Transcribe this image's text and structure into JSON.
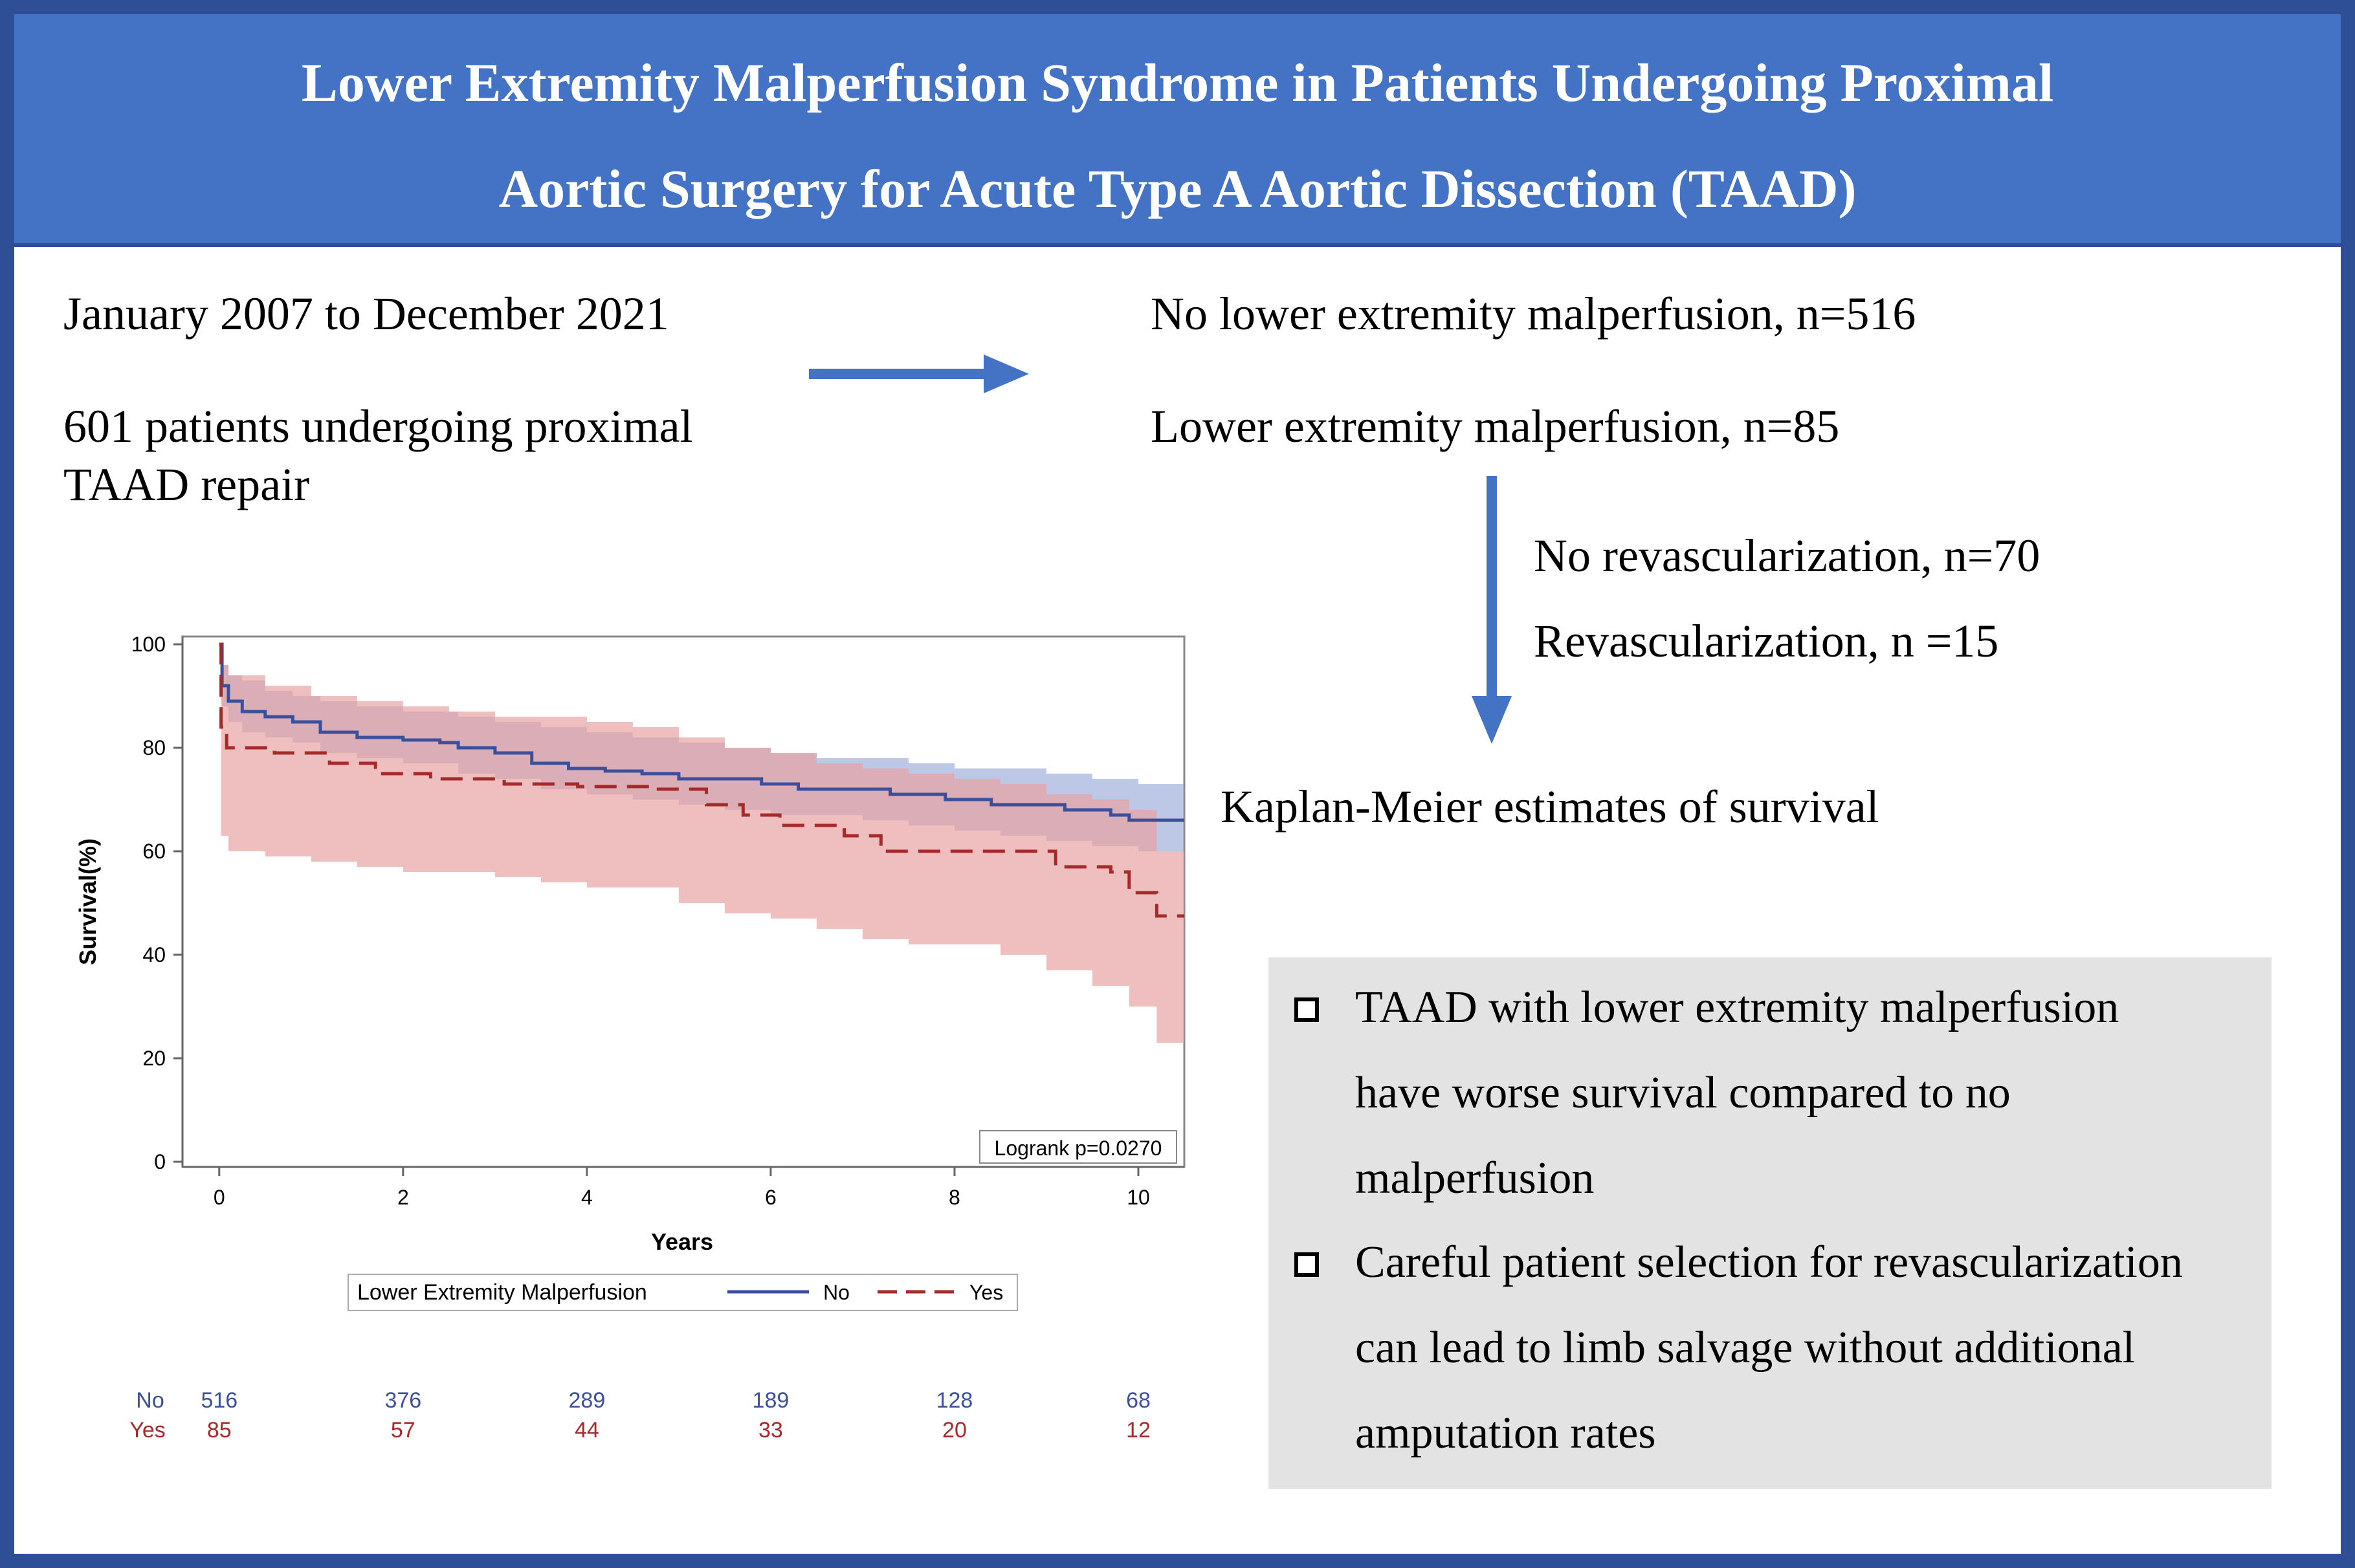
{
  "header": {
    "title_line1": "Lower Extremity Malperfusion Syndrome in Patients Undergoing Proximal",
    "title_line2": "Aortic Surgery for Acute Type A Aortic Dissection (TAAD)"
  },
  "flow": {
    "period": "January 2007 to December 2021",
    "cohort_line1": "601 patients undergoing proximal",
    "cohort_line2": "TAAD  repair",
    "no_malperfusion": "No lower extremity malperfusion, n=516",
    "malperfusion": "Lower extremity malperfusion, n=85",
    "no_revasc": "No revascularization, n=70",
    "revasc": "Revascularization, n =15",
    "km_label": "Kaplan-Meier estimates of survival"
  },
  "key_points": {
    "point1_line1": "TAAD with lower extremity malperfusion",
    "point1_line2": "have worse survival compared to no",
    "point1_line3": "malperfusion",
    "point2_line1": "Careful patient selection for revascularization",
    "point2_line2": "can lead to limb salvage without additional",
    "point2_line3": "amputation rates"
  },
  "colors": {
    "banner": "#4472c4",
    "border": "#2e4f96",
    "arrow": "#4472c4",
    "series_no": "#3b4f9a",
    "series_yes": "#a52a2a",
    "band_no": "#8fa3d6",
    "band_yes": "#e8a3a3"
  },
  "chart_data": {
    "type": "line",
    "xlabel": "Years",
    "ylabel": "Survival(%)",
    "xlim": [
      -0.4,
      10.5
    ],
    "ylim": [
      0,
      100
    ],
    "xticks": [
      0,
      2,
      4,
      6,
      8,
      10
    ],
    "yticks": [
      0,
      20,
      40,
      60,
      80,
      100
    ],
    "annotation": "Logrank p=0.0270",
    "legend": {
      "title": "Lower Extremity Malperfusion",
      "position": "bottom",
      "entries": [
        "No",
        "Yes"
      ]
    },
    "series": [
      {
        "name": "No",
        "style": "solid",
        "points": [
          [
            0,
            100
          ],
          [
            0.03,
            92
          ],
          [
            0.1,
            89
          ],
          [
            0.25,
            87
          ],
          [
            0.5,
            86
          ],
          [
            0.8,
            85
          ],
          [
            1.1,
            83
          ],
          [
            1.5,
            82
          ],
          [
            2,
            81.5
          ],
          [
            2.4,
            81
          ],
          [
            2.6,
            80
          ],
          [
            3,
            79
          ],
          [
            3.4,
            77
          ],
          [
            3.8,
            76
          ],
          [
            4.2,
            75.5
          ],
          [
            4.6,
            75
          ],
          [
            5,
            74
          ],
          [
            5.5,
            74
          ],
          [
            5.9,
            73
          ],
          [
            6.3,
            72
          ],
          [
            6.9,
            72
          ],
          [
            7.3,
            71
          ],
          [
            7.9,
            70
          ],
          [
            8.4,
            69
          ],
          [
            9.2,
            68
          ],
          [
            9.7,
            67
          ],
          [
            9.9,
            66
          ],
          [
            10.5,
            66
          ]
        ],
        "ci_upper": [
          [
            0,
            100
          ],
          [
            0.03,
            96
          ],
          [
            0.1,
            94
          ],
          [
            0.25,
            93
          ],
          [
            0.5,
            91
          ],
          [
            0.8,
            90
          ],
          [
            1.1,
            89
          ],
          [
            1.5,
            88
          ],
          [
            2,
            87
          ],
          [
            2.6,
            86
          ],
          [
            3,
            85
          ],
          [
            3.5,
            84
          ],
          [
            4,
            83
          ],
          [
            4.5,
            82
          ],
          [
            5,
            81
          ],
          [
            5.5,
            80
          ],
          [
            6,
            79
          ],
          [
            6.5,
            78
          ],
          [
            7,
            78
          ],
          [
            7.5,
            77
          ],
          [
            8,
            76
          ],
          [
            8.5,
            76
          ],
          [
            9,
            75
          ],
          [
            9.5,
            74
          ],
          [
            10,
            73
          ],
          [
            10.5,
            72
          ]
        ],
        "ci_lower": [
          [
            0,
            100
          ],
          [
            0.03,
            88
          ],
          [
            0.1,
            85
          ],
          [
            0.25,
            83
          ],
          [
            0.5,
            82
          ],
          [
            0.8,
            81
          ],
          [
            1.1,
            79
          ],
          [
            1.5,
            78
          ],
          [
            2,
            77
          ],
          [
            2.6,
            75
          ],
          [
            3,
            74
          ],
          [
            3.5,
            72
          ],
          [
            4,
            71
          ],
          [
            4.5,
            70
          ],
          [
            5,
            69
          ],
          [
            5.5,
            68
          ],
          [
            6,
            67
          ],
          [
            6.5,
            67
          ],
          [
            7,
            66
          ],
          [
            7.5,
            65
          ],
          [
            8,
            64
          ],
          [
            8.5,
            63
          ],
          [
            9,
            62
          ],
          [
            9.5,
            61
          ],
          [
            10,
            60
          ],
          [
            10.5,
            59
          ]
        ],
        "at_risk": [
          516,
          376,
          289,
          189,
          128,
          68
        ]
      },
      {
        "name": "Yes",
        "style": "dashed",
        "points": [
          [
            0,
            100
          ],
          [
            0.02,
            84
          ],
          [
            0.08,
            80
          ],
          [
            0.6,
            79
          ],
          [
            1.2,
            77
          ],
          [
            1.7,
            75
          ],
          [
            2.3,
            74
          ],
          [
            3.1,
            73
          ],
          [
            3.9,
            72.5
          ],
          [
            4.7,
            72
          ],
          [
            5.3,
            69
          ],
          [
            5.7,
            67
          ],
          [
            6.1,
            65
          ],
          [
            6.8,
            63
          ],
          [
            7.2,
            60
          ],
          [
            8.2,
            60
          ],
          [
            8.6,
            60
          ],
          [
            9.1,
            57
          ],
          [
            9.7,
            56
          ],
          [
            9.9,
            52
          ],
          [
            10.2,
            47.5
          ],
          [
            10.5,
            47.5
          ]
        ],
        "ci_upper": [
          [
            0,
            100
          ],
          [
            0.02,
            96
          ],
          [
            0.1,
            94
          ],
          [
            0.5,
            92
          ],
          [
            1,
            90
          ],
          [
            1.5,
            89
          ],
          [
            2,
            88
          ],
          [
            2.5,
            87
          ],
          [
            3,
            86
          ],
          [
            3.5,
            86
          ],
          [
            4,
            85
          ],
          [
            4.5,
            84
          ],
          [
            5,
            82
          ],
          [
            5.5,
            80
          ],
          [
            6,
            79
          ],
          [
            6.5,
            77
          ],
          [
            7,
            76
          ],
          [
            7.5,
            75
          ],
          [
            8,
            74
          ],
          [
            8.5,
            73
          ],
          [
            9,
            71
          ],
          [
            9.5,
            70
          ],
          [
            9.9,
            68
          ],
          [
            10.2,
            60
          ],
          [
            10.5,
            57
          ]
        ],
        "ci_lower": [
          [
            0,
            100
          ],
          [
            0.02,
            63
          ],
          [
            0.1,
            60
          ],
          [
            0.5,
            59
          ],
          [
            1,
            58
          ],
          [
            1.5,
            57
          ],
          [
            2,
            56
          ],
          [
            2.5,
            56
          ],
          [
            3,
            55
          ],
          [
            3.5,
            54
          ],
          [
            4,
            53
          ],
          [
            4.5,
            53
          ],
          [
            5,
            50
          ],
          [
            5.5,
            48
          ],
          [
            6,
            47
          ],
          [
            6.5,
            45
          ],
          [
            7,
            43
          ],
          [
            7.5,
            42
          ],
          [
            8,
            42
          ],
          [
            8.5,
            40
          ],
          [
            9,
            37
          ],
          [
            9.5,
            34
          ],
          [
            9.9,
            30
          ],
          [
            10.2,
            23
          ],
          [
            10.5,
            23
          ]
        ],
        "at_risk": [
          85,
          57,
          44,
          33,
          20,
          12
        ]
      }
    ],
    "at_risk_times": [
      0,
      2,
      4,
      6,
      8,
      10
    ]
  }
}
